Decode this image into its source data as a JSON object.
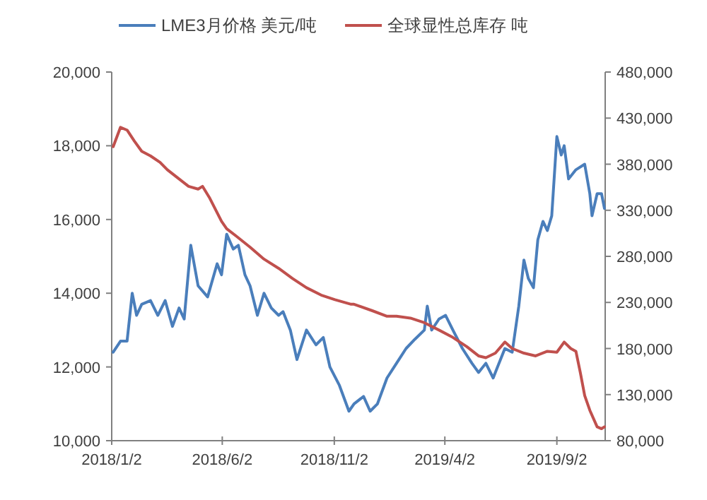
{
  "chart_data": {
    "type": "line",
    "legend": "top",
    "grid": false,
    "marker": "none",
    "line_style": "solid",
    "xlim": [
      "2018-01-02",
      "2019-11-07"
    ],
    "xticks": [
      {
        "value": "2018-01-02",
        "label": "2018/1/2"
      },
      {
        "value": "2018-06-02",
        "label": "2018/6/2"
      },
      {
        "value": "2018-11-02",
        "label": "2018/11/2"
      },
      {
        "value": "2019-04-02",
        "label": "2019/4/2"
      },
      {
        "value": "2019-09-02",
        "label": "2019/9/2"
      }
    ],
    "ylim": [
      10000,
      20000
    ],
    "yticks": [
      {
        "value": 10000,
        "label": "10,000"
      },
      {
        "value": 12000,
        "label": "12,000"
      },
      {
        "value": 14000,
        "label": "14,000"
      },
      {
        "value": 16000,
        "label": "16,000"
      },
      {
        "value": 18000,
        "label": "18,000"
      },
      {
        "value": 20000,
        "label": "20,000"
      }
    ],
    "y2lim": [
      80000,
      480000
    ],
    "y2ticks": [
      {
        "value": 80000,
        "label": "80,000"
      },
      {
        "value": 130000,
        "label": "130,000"
      },
      {
        "value": 180000,
        "label": "180,000"
      },
      {
        "value": 230000,
        "label": "230,000"
      },
      {
        "value": 280000,
        "label": "280,000"
      },
      {
        "value": 330000,
        "label": "330,000"
      },
      {
        "value": 380000,
        "label": "380,000"
      },
      {
        "value": 430000,
        "label": "430,000"
      },
      {
        "value": 480000,
        "label": "480,000"
      }
    ],
    "series": [
      {
        "name": "LME3月价格 美元/吨",
        "color": "#4a7ebb",
        "axis": "y",
        "x": [
          "2018-01-04",
          "2018-01-14",
          "2018-01-23",
          "2018-01-30",
          "2018-02-05",
          "2018-02-12",
          "2018-02-24",
          "2018-03-06",
          "2018-03-16",
          "2018-03-26",
          "2018-04-04",
          "2018-04-11",
          "2018-04-20",
          "2018-04-30",
          "2018-05-13",
          "2018-05-26",
          "2018-06-01",
          "2018-06-08",
          "2018-06-17",
          "2018-06-24",
          "2018-07-03",
          "2018-07-10",
          "2018-07-20",
          "2018-07-29",
          "2018-08-08",
          "2018-08-18",
          "2018-08-24",
          "2018-09-03",
          "2018-09-12",
          "2018-09-25",
          "2018-10-08",
          "2018-10-18",
          "2018-10-27",
          "2018-11-09",
          "2018-11-22",
          "2018-11-29",
          "2018-12-12",
          "2018-12-21",
          "2018-12-31",
          "2019-01-13",
          "2019-01-26",
          "2019-02-08",
          "2019-02-20",
          "2019-03-05",
          "2019-03-09",
          "2019-03-15",
          "2019-03-25",
          "2019-04-03",
          "2019-04-13",
          "2019-04-26",
          "2019-05-09",
          "2019-05-18",
          "2019-05-28",
          "2019-06-07",
          "2019-06-13",
          "2019-06-23",
          "2019-07-03",
          "2019-07-12",
          "2019-07-19",
          "2019-07-25",
          "2019-08-01",
          "2019-08-07",
          "2019-08-14",
          "2019-08-20",
          "2019-08-26",
          "2019-09-02",
          "2019-09-08",
          "2019-09-12",
          "2019-09-18",
          "2019-09-28",
          "2019-10-10",
          "2019-10-17",
          "2019-10-20",
          "2019-10-27",
          "2019-11-02",
          "2019-11-06"
        ],
        "values": [
          12400,
          12700,
          12700,
          14000,
          13400,
          13700,
          13800,
          13400,
          13800,
          13100,
          13600,
          13300,
          15300,
          14200,
          13900,
          14800,
          14500,
          15600,
          15200,
          15300,
          14500,
          14200,
          13400,
          14000,
          13600,
          13400,
          13500,
          13000,
          12200,
          13000,
          12600,
          12800,
          12000,
          11500,
          10800,
          11000,
          11200,
          10800,
          11000,
          11700,
          12100,
          12500,
          12750,
          13000,
          13650,
          13000,
          13300,
          13400,
          13000,
          12500,
          12100,
          11850,
          12100,
          11700,
          12000,
          12500,
          12400,
          13650,
          14900,
          14400,
          14150,
          15450,
          15950,
          15700,
          16100,
          18250,
          17750,
          18000,
          17100,
          17350,
          17500,
          16700,
          16100,
          16700,
          16700,
          16300
        ]
      },
      {
        "name": "全球显性总库存 吨",
        "color": "#c0504d",
        "axis": "y2",
        "x": [
          "2018-01-04",
          "2018-01-14",
          "2018-01-23",
          "2018-02-02",
          "2018-02-12",
          "2018-02-24",
          "2018-03-09",
          "2018-03-19",
          "2018-04-04",
          "2018-04-17",
          "2018-04-30",
          "2018-05-06",
          "2018-05-16",
          "2018-06-01",
          "2018-06-08",
          "2018-06-21",
          "2018-07-10",
          "2018-07-29",
          "2018-08-18",
          "2018-09-06",
          "2018-09-25",
          "2018-10-15",
          "2018-11-03",
          "2018-11-25",
          "2018-11-29",
          "2018-12-24",
          "2019-01-13",
          "2019-01-26",
          "2019-02-14",
          "2019-03-05",
          "2019-03-25",
          "2019-04-13",
          "2019-05-02",
          "2019-05-18",
          "2019-05-28",
          "2019-06-10",
          "2019-06-23",
          "2019-07-03",
          "2019-07-19",
          "2019-08-04",
          "2019-08-20",
          "2019-09-02",
          "2019-09-12",
          "2019-09-21",
          "2019-09-28",
          "2019-10-04",
          "2019-10-10",
          "2019-10-17",
          "2019-10-27",
          "2019-11-02",
          "2019-11-06"
        ],
        "values": [
          399000,
          420000,
          417000,
          405000,
          394000,
          389000,
          382000,
          374000,
          364000,
          356000,
          353000,
          356000,
          343000,
          318000,
          310000,
          302000,
          290000,
          277000,
          267000,
          256000,
          246000,
          238000,
          233000,
          228000,
          228000,
          221000,
          215000,
          215000,
          213000,
          208000,
          200000,
          192000,
          182000,
          172000,
          170000,
          175000,
          187000,
          180000,
          175000,
          172000,
          177000,
          176000,
          187000,
          180000,
          177000,
          154000,
          129000,
          113000,
          95000,
          93000,
          95000
        ]
      }
    ]
  }
}
